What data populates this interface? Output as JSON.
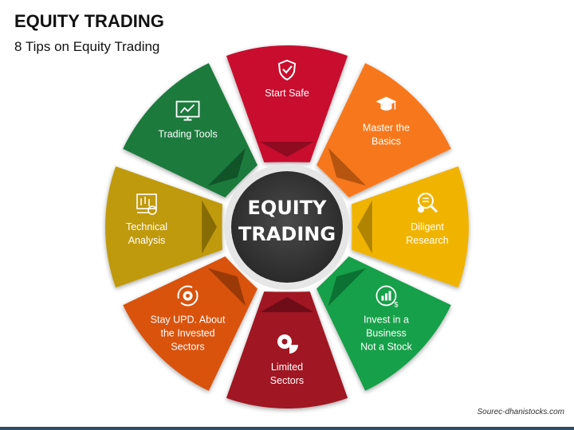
{
  "header": {
    "title": "EQUITY TRADING",
    "subtitle": "8 Tips on Equity Trading"
  },
  "center": {
    "line1": "EQUITY",
    "line2": "TRADING"
  },
  "segments": [
    {
      "id": "start-safe",
      "lines": [
        "Start Safe"
      ],
      "color": "#c8102e",
      "dark": "#8e0b20",
      "icon": "shield-check-icon"
    },
    {
      "id": "master-basics",
      "lines": [
        "Master the",
        "Basics"
      ],
      "color": "#f7781e",
      "dark": "#b65510",
      "icon": "graduation-cap-icon"
    },
    {
      "id": "diligent-research",
      "lines": [
        "Diligent",
        "Research"
      ],
      "color": "#f0b400",
      "dark": "#b08400",
      "icon": "search-gear-icon"
    },
    {
      "id": "invest-business",
      "lines": [
        "Invest in a",
        "Business",
        "Not a Stock"
      ],
      "color": "#13a049",
      "dark": "#0c7233",
      "icon": "growth-chart-dollar-icon"
    },
    {
      "id": "limited-sectors",
      "lines": [
        "Limited",
        "Sectors"
      ],
      "color": "#a01423",
      "dark": "#6e0d18",
      "icon": "gears-pie-icon"
    },
    {
      "id": "stay-updated",
      "lines": [
        "Stay UPD. About",
        "the Invested",
        "Sectors"
      ],
      "color": "#d9520c",
      "dark": "#9a3a08",
      "icon": "gear-refresh-icon"
    },
    {
      "id": "technical-analysis",
      "lines": [
        "Technical",
        "Analysis"
      ],
      "color": "#c09a0a",
      "dark": "#876c06",
      "icon": "analysis-chart-icon"
    },
    {
      "id": "trading-tools",
      "lines": [
        "Trading Tools"
      ],
      "color": "#1a7a3c",
      "dark": "#105428",
      "icon": "monitor-chart-icon"
    }
  ],
  "footer": {
    "source": "Sourec-dhanistocks.com"
  }
}
